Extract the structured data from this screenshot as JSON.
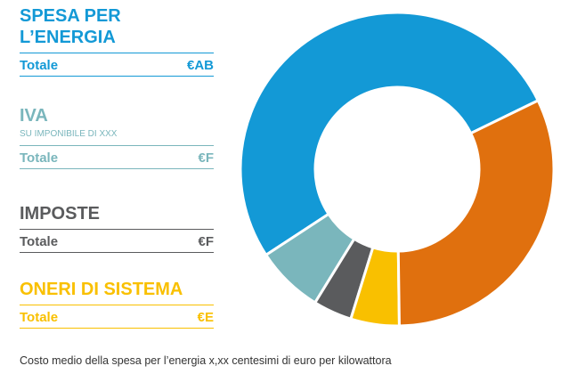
{
  "chart_data": {
    "type": "donut",
    "categories": [
      "SPESA PER L’ENERGIA",
      "IVA",
      "IMPOSTE",
      "ONERI DI SISTEMA",
      null
    ],
    "values": [
      52,
      7,
      4,
      5,
      32
    ],
    "colors": [
      "#1399d6",
      "#7ab6bc",
      "#5a5b5d",
      "#f9c000",
      "#e0700e"
    ],
    "details": [
      {
        "total_label": "Totale",
        "total": "€AB"
      },
      {
        "subtitle": "SU IMPONIBILE DI XXX",
        "total_label": "Totale",
        "total": "€F"
      },
      {
        "total_label": "Totale",
        "total": "€F"
      },
      {
        "total_label": "Totale",
        "total": "€E"
      }
    ],
    "note": "Costo medio della spesa per l’energia x,xx centesimi di euro per kilowattora"
  }
}
